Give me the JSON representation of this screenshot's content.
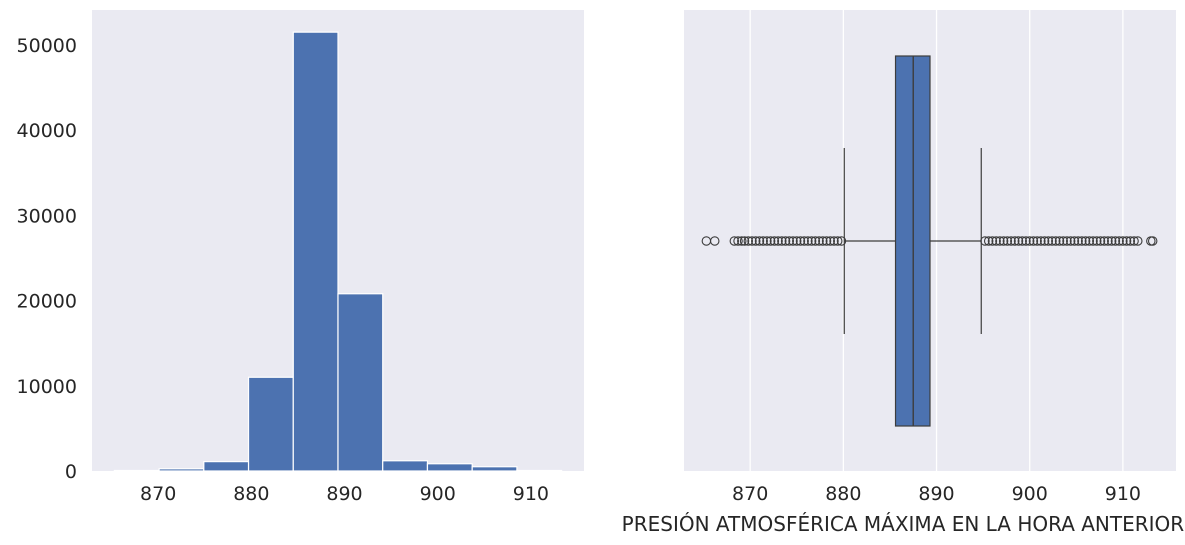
{
  "chart_data": [
    {
      "type": "histogram",
      "bins": [
        {
          "start": 865.3,
          "end": 870.1,
          "count": 60
        },
        {
          "start": 870.1,
          "end": 874.9,
          "count": 260
        },
        {
          "start": 874.9,
          "end": 879.7,
          "count": 1100
        },
        {
          "start": 879.7,
          "end": 884.5,
          "count": 11000
        },
        {
          "start": 884.5,
          "end": 889.3,
          "count": 51500
        },
        {
          "start": 889.3,
          "end": 894.1,
          "count": 20800
        },
        {
          "start": 894.1,
          "end": 898.9,
          "count": 1200
        },
        {
          "start": 898.9,
          "end": 903.7,
          "count": 850
        },
        {
          "start": 903.7,
          "end": 908.5,
          "count": 500
        },
        {
          "start": 908.5,
          "end": 913.3,
          "count": 60
        }
      ],
      "xlim": [
        862.9,
        915.7
      ],
      "ylim": [
        0,
        54100
      ],
      "xticks": [
        870,
        880,
        890,
        900,
        910
      ],
      "xtick_labels": [
        "870",
        "880",
        "890",
        "900",
        "910"
      ],
      "yticks": [
        0,
        10000,
        20000,
        30000,
        40000,
        50000
      ],
      "ytick_labels": [
        "0",
        "10000",
        "20000",
        "30000",
        "40000",
        "50000"
      ],
      "bar_color": "#4c72b0",
      "background": "#eaeaf2",
      "grid": false
    },
    {
      "type": "boxplot",
      "orientation": "horizontal",
      "q1": 885.6,
      "median": 887.5,
      "q3": 889.3,
      "whisker_low": 880.1,
      "whisker_high": 894.8,
      "outliers_low": [
        865.3,
        866.2,
        868.3,
        868.7,
        869.1,
        869.4,
        869.8,
        870.2,
        870.6,
        871.0,
        871.4,
        871.8,
        872.2,
        872.6,
        873.0,
        873.4,
        873.8,
        874.2,
        874.6,
        875.0,
        875.4,
        875.8,
        876.2,
        876.6,
        877.0,
        877.4,
        877.8,
        878.2,
        878.6,
        879.0,
        879.4,
        879.8
      ],
      "outliers_high": [
        895.2,
        895.6,
        896.0,
        896.4,
        896.8,
        897.2,
        897.6,
        898.0,
        898.4,
        898.8,
        899.2,
        899.6,
        900.0,
        900.4,
        900.8,
        901.2,
        901.6,
        902.0,
        902.4,
        902.8,
        903.2,
        903.6,
        904.0,
        904.4,
        904.8,
        905.2,
        905.6,
        906.0,
        906.4,
        906.8,
        907.2,
        907.6,
        908.0,
        908.4,
        908.8,
        909.2,
        909.6,
        910.0,
        910.4,
        910.8,
        911.2,
        911.6,
        913.0,
        913.2
      ],
      "xlim": [
        862.9,
        915.7
      ],
      "xticks": [
        870,
        880,
        890,
        900,
        910
      ],
      "xtick_labels": [
        "870",
        "880",
        "890",
        "900",
        "910"
      ],
      "xlabel": "PRESIÓN ATMOSFÉRICA MÁXIMA EN LA HORA ANTERIOR (mb)",
      "box_color": "#4c72b0",
      "line_color": "#3d3d3d",
      "background": "#eaeaf2",
      "grid": "vertical"
    }
  ]
}
